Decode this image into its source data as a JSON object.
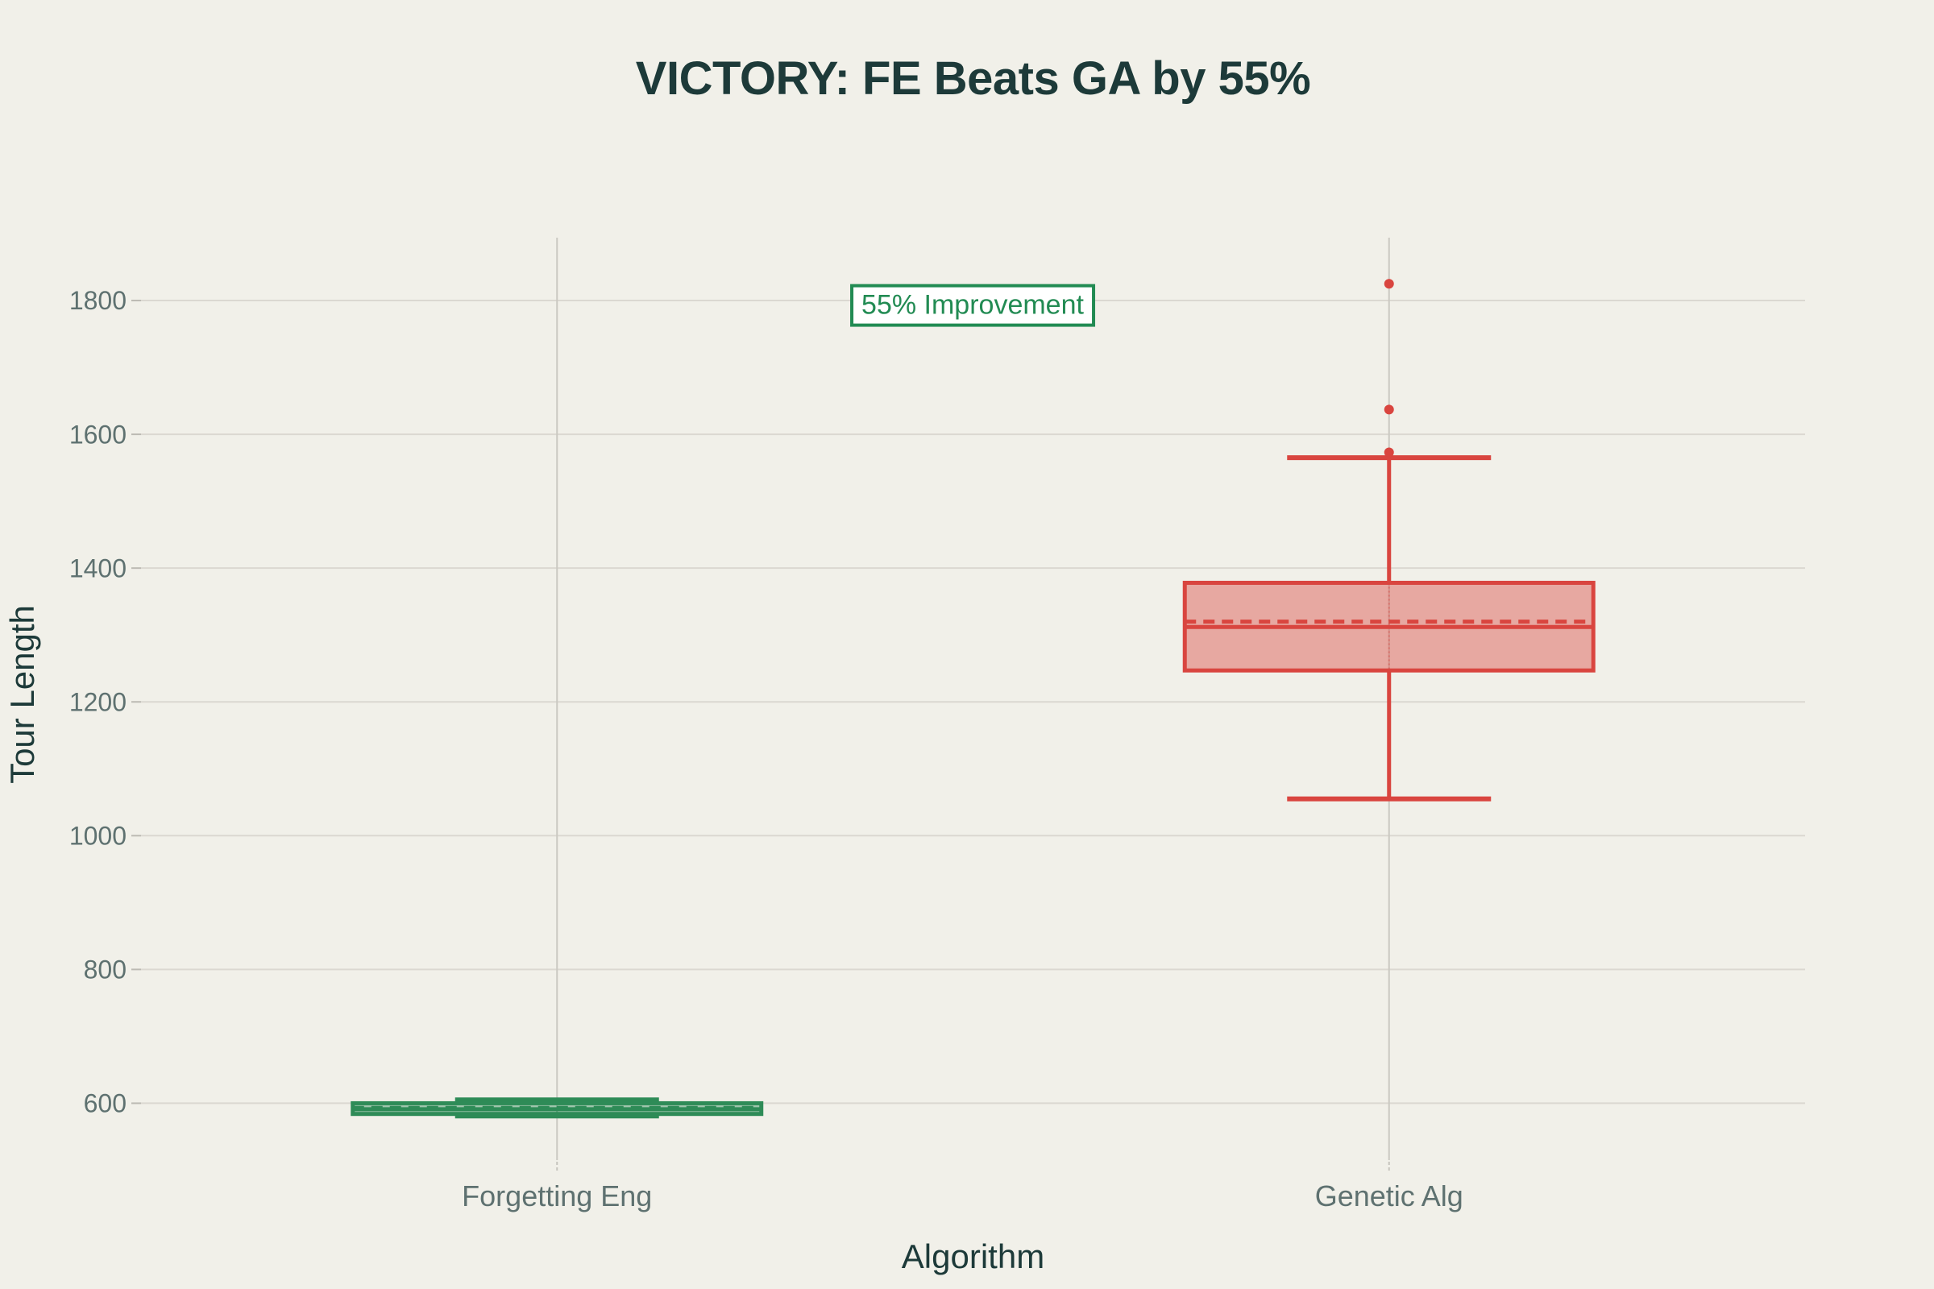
{
  "page": {
    "background": "#f1f0e9"
  },
  "text_colors": {
    "title": "#1d3a39",
    "tick_label": "#5e7170"
  },
  "chart_data": {
    "type": "box",
    "title": "VICTORY: FE Beats GA by 55%",
    "xlabel": "Algorithm",
    "ylabel": "Tour Length",
    "categories": [
      "Forgetting Eng",
      "Genetic Alg"
    ],
    "yticks": [
      600,
      800,
      1000,
      1200,
      1400,
      1600,
      1800
    ],
    "ylim": [
      515,
      1894
    ],
    "grid": true,
    "legend": "none",
    "series": [
      {
        "name": "Forgetting Eng",
        "color": "#2e8b57",
        "whisker_low": 581,
        "q1": 584,
        "median": 591,
        "mean": 593,
        "q3": 600,
        "whisker_high": 605,
        "outliers": []
      },
      {
        "name": "Genetic Alg",
        "color": "#d9453f",
        "whisker_low": 1055,
        "q1": 1247,
        "median": 1312,
        "mean": 1320,
        "q3": 1378,
        "whisker_high": 1565,
        "outliers": [
          1573,
          1637,
          1825
        ]
      }
    ],
    "annotation": {
      "text": "55% Improvement",
      "y": 1793,
      "color": "#228b53",
      "background": "#ffffff"
    }
  }
}
